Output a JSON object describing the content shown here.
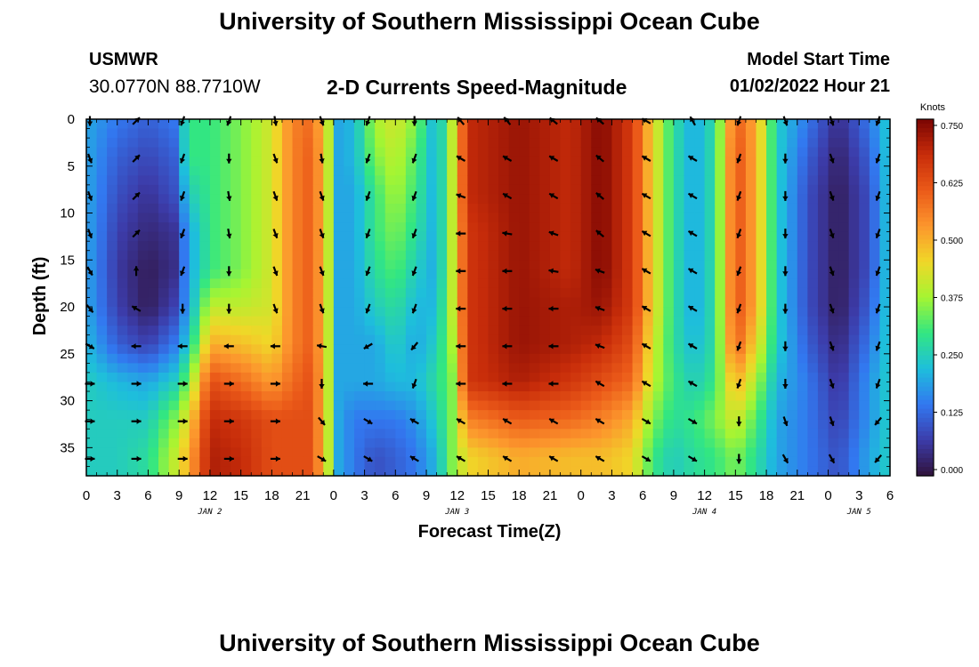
{
  "header": {
    "title": "University of Southern Mississippi Ocean Cube",
    "station_name": "USMWR",
    "station_coords": "30.0770N  88.7710W",
    "chart_title": "2-D Currents Speed-Magnitude",
    "model_start_label": "Model Start Time",
    "model_start_value": "01/02/2022 Hour 21"
  },
  "footer": {
    "title": "University of Southern Mississippi Ocean Cube"
  },
  "chart_data": {
    "type": "heatmap",
    "title": "2-D Currents Speed-Magnitude",
    "xlabel": "Forecast Time(Z)",
    "ylabel": "Depth (ft)",
    "x_range_hours": [
      0,
      78
    ],
    "x_tick_labels": [
      "0",
      "3",
      "6",
      "9",
      "12",
      "15",
      "18",
      "21",
      "0",
      "3",
      "6",
      "9",
      "12",
      "15",
      "18",
      "21",
      "0",
      "3",
      "6",
      "9",
      "12",
      "15",
      "18",
      "21",
      "0",
      "3",
      "6"
    ],
    "date_labels": [
      {
        "text": "JAN 2",
        "hour": 12
      },
      {
        "text": "JAN 3",
        "hour": 36
      },
      {
        "text": "JAN 4",
        "hour": 60
      },
      {
        "text": "JAN 5",
        "hour": 75
      }
    ],
    "y_range_ft": [
      0,
      38
    ],
    "y_ticks": [
      0,
      5,
      10,
      15,
      20,
      25,
      30,
      35
    ],
    "colorbar": {
      "label": "Knots",
      "min": 0,
      "max": 0.75,
      "ticks": [
        "0.750",
        "0.625",
        "0.500",
        "0.375",
        "0.250",
        "0.125",
        "0.000"
      ]
    },
    "depth_levels_ft": [
      0,
      4,
      8,
      12,
      16,
      20,
      24,
      28,
      32,
      36
    ],
    "speed_profiles": [
      {
        "hour": 0,
        "speed": [
          0.2,
          0.2,
          0.2,
          0.2,
          0.2,
          0.2,
          0.22,
          0.25,
          0.25,
          0.25
        ]
      },
      {
        "hour": 3,
        "speed": [
          0.15,
          0.12,
          0.1,
          0.08,
          0.07,
          0.08,
          0.12,
          0.22,
          0.25,
          0.25
        ]
      },
      {
        "hour": 6,
        "speed": [
          0.12,
          0.09,
          0.06,
          0.04,
          0.02,
          0.02,
          0.08,
          0.2,
          0.25,
          0.28
        ]
      },
      {
        "hour": 8.5,
        "speed": [
          0.15,
          0.12,
          0.1,
          0.06,
          0.05,
          0.08,
          0.15,
          0.25,
          0.35,
          0.4
        ]
      },
      {
        "hour": 10,
        "speed": [
          0.3,
          0.3,
          0.25,
          0.2,
          0.2,
          0.2,
          0.25,
          0.35,
          0.45,
          0.5
        ]
      },
      {
        "hour": 12,
        "speed": [
          0.3,
          0.3,
          0.3,
          0.3,
          0.3,
          0.4,
          0.5,
          0.62,
          0.68,
          0.7
        ]
      },
      {
        "hour": 15,
        "speed": [
          0.35,
          0.35,
          0.35,
          0.35,
          0.35,
          0.4,
          0.48,
          0.58,
          0.66,
          0.68
        ]
      },
      {
        "hour": 18,
        "speed": [
          0.42,
          0.42,
          0.42,
          0.42,
          0.42,
          0.42,
          0.45,
          0.52,
          0.62,
          0.62
        ]
      },
      {
        "hour": 20,
        "speed": [
          0.55,
          0.55,
          0.55,
          0.55,
          0.55,
          0.55,
          0.55,
          0.58,
          0.62,
          0.62
        ]
      },
      {
        "hour": 22,
        "speed": [
          0.58,
          0.6,
          0.6,
          0.6,
          0.6,
          0.6,
          0.6,
          0.62,
          0.62,
          0.62
        ]
      },
      {
        "hour": 23.5,
        "speed": [
          0.4,
          0.4,
          0.4,
          0.4,
          0.4,
          0.4,
          0.4,
          0.4,
          0.4,
          0.4
        ]
      },
      {
        "hour": 24.5,
        "speed": [
          0.2,
          0.2,
          0.2,
          0.2,
          0.2,
          0.2,
          0.2,
          0.2,
          0.2,
          0.2
        ]
      },
      {
        "hour": 26,
        "speed": [
          0.22,
          0.22,
          0.2,
          0.2,
          0.2,
          0.2,
          0.2,
          0.2,
          0.15,
          0.15
        ]
      },
      {
        "hour": 28,
        "speed": [
          0.38,
          0.35,
          0.3,
          0.3,
          0.28,
          0.25,
          0.2,
          0.2,
          0.15,
          0.1
        ]
      },
      {
        "hour": 30,
        "speed": [
          0.42,
          0.4,
          0.38,
          0.35,
          0.32,
          0.28,
          0.25,
          0.22,
          0.15,
          0.12
        ]
      },
      {
        "hour": 32,
        "speed": [
          0.35,
          0.32,
          0.3,
          0.28,
          0.25,
          0.22,
          0.2,
          0.22,
          0.18,
          0.15
        ]
      },
      {
        "hour": 34,
        "speed": [
          0.2,
          0.2,
          0.2,
          0.2,
          0.2,
          0.22,
          0.25,
          0.28,
          0.25,
          0.22
        ]
      },
      {
        "hour": 35.5,
        "speed": [
          0.4,
          0.4,
          0.4,
          0.4,
          0.4,
          0.4,
          0.38,
          0.35,
          0.35,
          0.35
        ]
      },
      {
        "hour": 37,
        "speed": [
          0.68,
          0.68,
          0.68,
          0.66,
          0.66,
          0.66,
          0.66,
          0.66,
          0.55,
          0.45
        ]
      },
      {
        "hour": 42,
        "speed": [
          0.72,
          0.72,
          0.72,
          0.72,
          0.72,
          0.72,
          0.72,
          0.7,
          0.6,
          0.5
        ]
      },
      {
        "hour": 47,
        "speed": [
          0.68,
          0.68,
          0.68,
          0.68,
          0.68,
          0.7,
          0.7,
          0.66,
          0.58,
          0.48
        ]
      },
      {
        "hour": 50,
        "speed": [
          0.74,
          0.74,
          0.74,
          0.74,
          0.74,
          0.72,
          0.68,
          0.62,
          0.55,
          0.48
        ]
      },
      {
        "hour": 53,
        "speed": [
          0.65,
          0.65,
          0.65,
          0.65,
          0.65,
          0.65,
          0.62,
          0.58,
          0.5,
          0.45
        ]
      },
      {
        "hour": 55,
        "speed": [
          0.45,
          0.45,
          0.45,
          0.45,
          0.45,
          0.45,
          0.42,
          0.4,
          0.35,
          0.3
        ]
      },
      {
        "hour": 57,
        "speed": [
          0.28,
          0.28,
          0.28,
          0.28,
          0.28,
          0.28,
          0.28,
          0.3,
          0.28,
          0.25
        ]
      },
      {
        "hour": 59,
        "speed": [
          0.2,
          0.2,
          0.2,
          0.2,
          0.2,
          0.2,
          0.22,
          0.25,
          0.3,
          0.28
        ]
      },
      {
        "hour": 61,
        "speed": [
          0.28,
          0.28,
          0.28,
          0.28,
          0.28,
          0.28,
          0.28,
          0.3,
          0.35,
          0.3
        ]
      },
      {
        "hour": 63,
        "speed": [
          0.6,
          0.62,
          0.62,
          0.62,
          0.62,
          0.62,
          0.6,
          0.5,
          0.42,
          0.35
        ]
      },
      {
        "hour": 65,
        "speed": [
          0.5,
          0.5,
          0.5,
          0.5,
          0.5,
          0.5,
          0.45,
          0.38,
          0.32,
          0.28
        ]
      },
      {
        "hour": 67,
        "speed": [
          0.25,
          0.25,
          0.25,
          0.25,
          0.25,
          0.25,
          0.25,
          0.22,
          0.2,
          0.2
        ]
      },
      {
        "hour": 70,
        "speed": [
          0.15,
          0.12,
          0.1,
          0.1,
          0.1,
          0.1,
          0.12,
          0.15,
          0.15,
          0.15
        ]
      },
      {
        "hour": 73,
        "speed": [
          0.05,
          0.03,
          0.02,
          0.02,
          0.02,
          0.02,
          0.04,
          0.06,
          0.08,
          0.1
        ]
      },
      {
        "hour": 76,
        "speed": [
          0.15,
          0.12,
          0.1,
          0.1,
          0.1,
          0.12,
          0.15,
          0.18,
          0.18,
          0.2
        ]
      },
      {
        "hour": 78,
        "speed": [
          0.25,
          0.25,
          0.25,
          0.25,
          0.25,
          0.25,
          0.25,
          0.25,
          0.25,
          0.25
        ]
      }
    ],
    "vector_grid": {
      "depths_ft": [
        0,
        4,
        8,
        12,
        16,
        20,
        24,
        28,
        32,
        36
      ],
      "hours": [
        0,
        4.5,
        9,
        13.5,
        18,
        22.5,
        27,
        31.5,
        36,
        40.5,
        45,
        49.5,
        54,
        58.5,
        63,
        67.5,
        72,
        76.5
      ],
      "directions_deg": [
        [
          180,
          45,
          200,
          200,
          170,
          160,
          200,
          180,
          320,
          320,
          310,
          310,
          300,
          330,
          200,
          160,
          160,
          200
        ],
        [
          160,
          45,
          200,
          180,
          160,
          170,
          200,
          200,
          300,
          300,
          300,
          310,
          300,
          300,
          200,
          180,
          160,
          200
        ],
        [
          160,
          45,
          200,
          170,
          160,
          160,
          200,
          200,
          290,
          300,
          300,
          310,
          300,
          300,
          200,
          180,
          160,
          200
        ],
        [
          160,
          45,
          200,
          170,
          160,
          160,
          200,
          200,
          270,
          280,
          290,
          310,
          300,
          300,
          200,
          180,
          160,
          200
        ],
        [
          150,
          0,
          200,
          180,
          160,
          160,
          200,
          200,
          270,
          270,
          280,
          290,
          300,
          300,
          200,
          180,
          160,
          200
        ],
        [
          140,
          300,
          180,
          180,
          160,
          160,
          200,
          200,
          270,
          270,
          270,
          290,
          300,
          300,
          200,
          180,
          160,
          200
        ],
        [
          120,
          270,
          270,
          270,
          270,
          280,
          240,
          220,
          270,
          270,
          270,
          290,
          300,
          300,
          200,
          180,
          160,
          200
        ],
        [
          90,
          90,
          90,
          90,
          90,
          180,
          270,
          200,
          270,
          270,
          270,
          300,
          300,
          300,
          200,
          180,
          160,
          200
        ],
        [
          90,
          90,
          90,
          90,
          90,
          140,
          120,
          300,
          300,
          300,
          300,
          300,
          120,
          120,
          180,
          160,
          160,
          220
        ],
        [
          90,
          90,
          90,
          90,
          90,
          120,
          120,
          300,
          300,
          300,
          300,
          300,
          120,
          120,
          180,
          150,
          150,
          220
        ]
      ]
    }
  }
}
